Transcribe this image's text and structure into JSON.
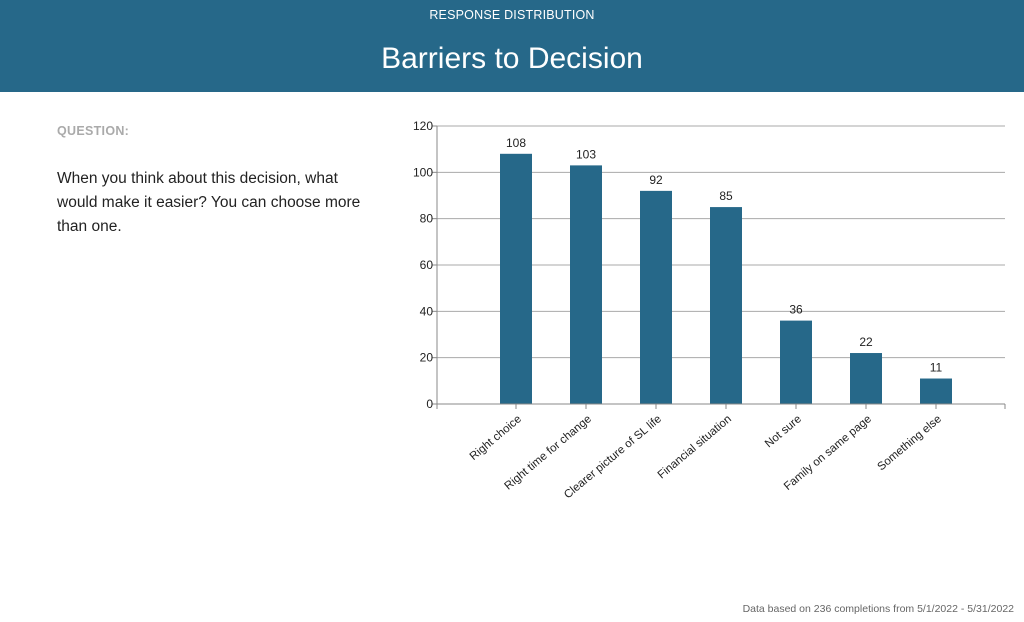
{
  "header": {
    "subtitle": "RESPONSE DISTRIBUTION",
    "title": "Barriers to Decision"
  },
  "question": {
    "label": "QUESTION:",
    "text": "When you think about this decision, what would make it easier? You can choose more than one."
  },
  "footer": {
    "note": "Data based on 236 completions from 5/1/2022 - 5/31/2022"
  },
  "colors": {
    "header": "#266889",
    "bar": "#266889"
  },
  "chart_data": {
    "type": "bar",
    "title": "",
    "xlabel": "",
    "ylabel": "",
    "categories": [
      "Right choice",
      "Right time for change",
      "Clearer picture of SL life",
      "Financial situation",
      "Not sure",
      "Family on same page",
      "Something else"
    ],
    "values": [
      108,
      103,
      92,
      85,
      36,
      22,
      11
    ],
    "ylim": [
      0,
      120
    ],
    "yticks": [
      0,
      20,
      40,
      60,
      80,
      100,
      120
    ],
    "grid": true,
    "data_labels": true
  }
}
